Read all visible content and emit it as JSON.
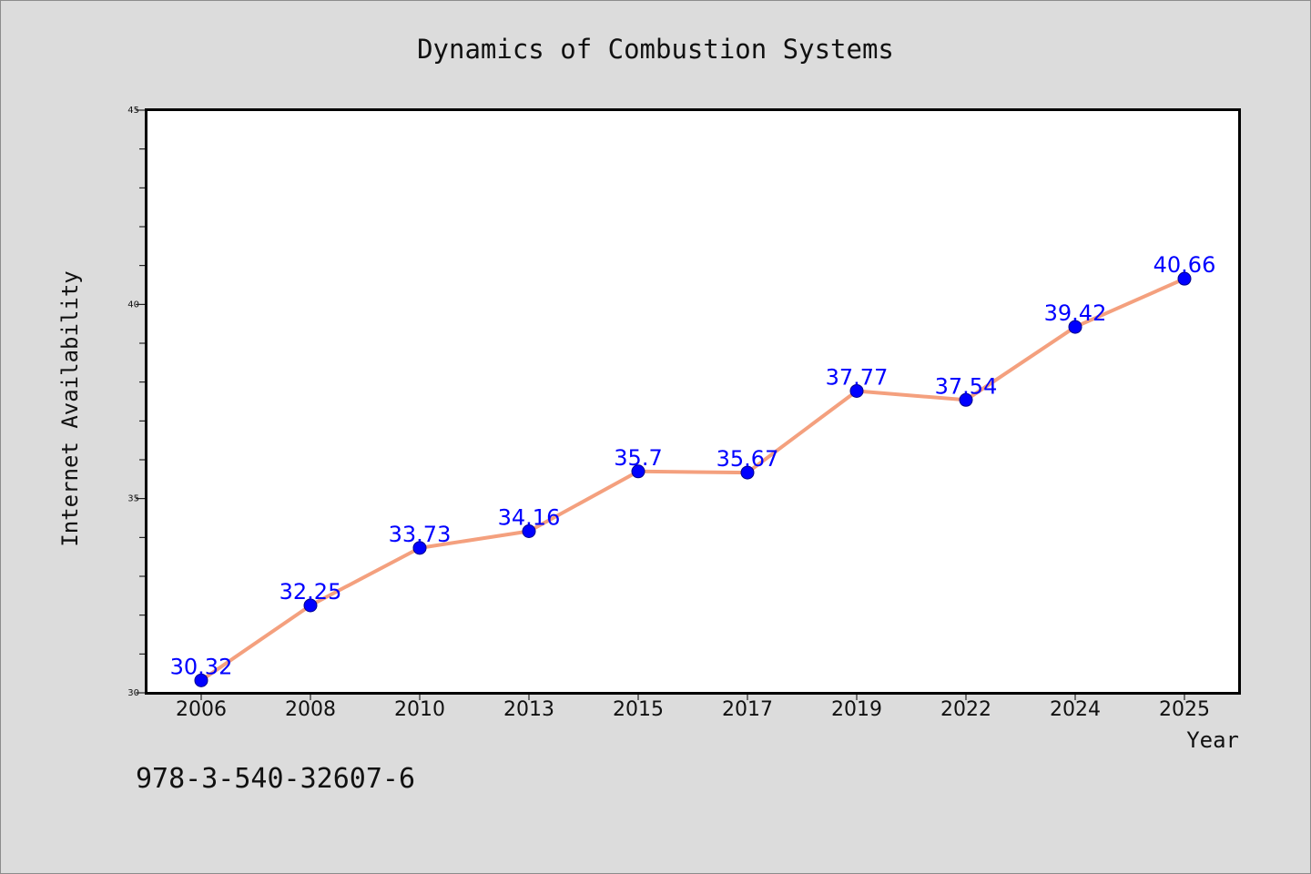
{
  "chart_data": {
    "type": "line",
    "title": "Dynamics of Combustion Systems",
    "xlabel": "Year",
    "ylabel": "Internet Availability",
    "categories": [
      "2006",
      "2008",
      "2010",
      "2013",
      "2015",
      "2017",
      "2019",
      "2022",
      "2024",
      "2025"
    ],
    "series": [
      {
        "values": [
          30.32,
          32.25,
          33.73,
          34.16,
          35.7,
          35.67,
          37.77,
          37.54,
          39.42,
          40.66
        ]
      }
    ],
    "data_labels": [
      "30.32",
      "32.25",
      "33.73",
      "34.16",
      "35.7",
      "35.67",
      "37.77",
      "37.54",
      "39.42",
      "40.66"
    ],
    "ylim": [
      30,
      45
    ],
    "yticks": [
      30,
      35,
      40,
      45
    ],
    "ytick_labels": [
      "30",
      "35",
      "40",
      "45"
    ],
    "grid": false,
    "legend": "none",
    "colors": {
      "line": "#f4a07e",
      "marker": "#0000ff",
      "marker_edge": "#00008b",
      "data_label": "#0000ff",
      "background": "#dcdcdc",
      "plot_background": "#ffffff"
    }
  },
  "footer": {
    "isbn": "978-3-540-32607-6"
  }
}
